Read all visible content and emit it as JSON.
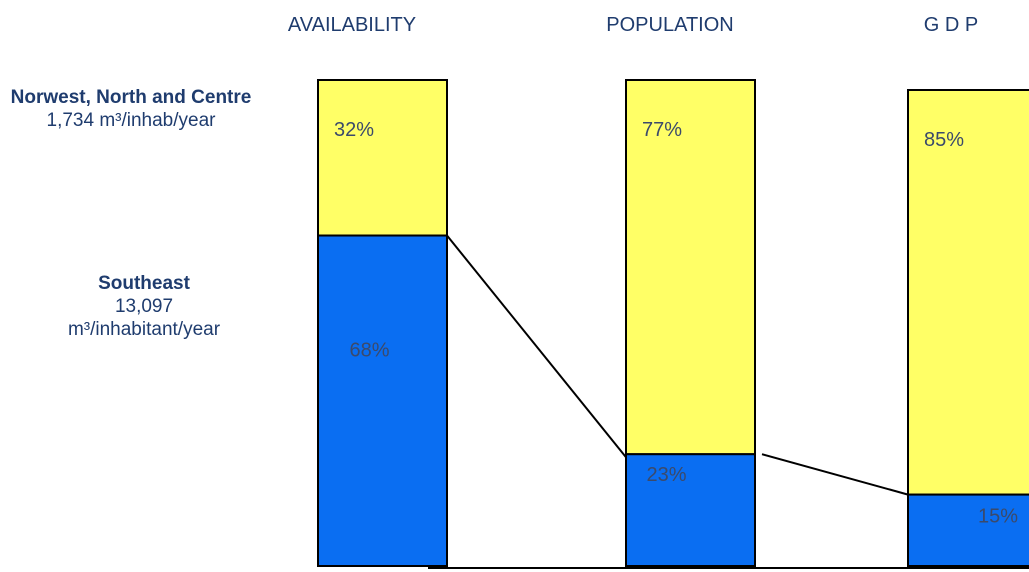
{
  "chart_data": {
    "type": "bar",
    "stacked": true,
    "percent": true,
    "categories": [
      "AVAILABILITY",
      "POPULATION",
      "G D P"
    ],
    "series": [
      {
        "name": "Southeast",
        "values": [
          68,
          23,
          15
        ],
        "color": "#0a6ef2"
      },
      {
        "name": "Norwest, North and Centre",
        "values": [
          32,
          77,
          85
        ],
        "color": "#ffff66"
      }
    ],
    "labels": {
      "southeast": [
        "68%",
        "23%",
        "15%"
      ],
      "north": [
        "32%",
        "77%",
        "85%"
      ]
    },
    "connector_lines": true,
    "ylim": [
      0,
      100
    ],
    "grid": false
  },
  "regions": {
    "north": {
      "name": "Norwest, North and Centre",
      "value": "1,734 m³/inhab/year"
    },
    "southeast": {
      "name": "Southeast",
      "value_line1": "13,097",
      "value_line2": "m³/inhabitant/year"
    }
  },
  "colors": {
    "south_label_dark": "#3b4a6b",
    "south_label_light": "#ffffff",
    "north_label": "#3b4a6b",
    "title": "#1f3c6e"
  }
}
